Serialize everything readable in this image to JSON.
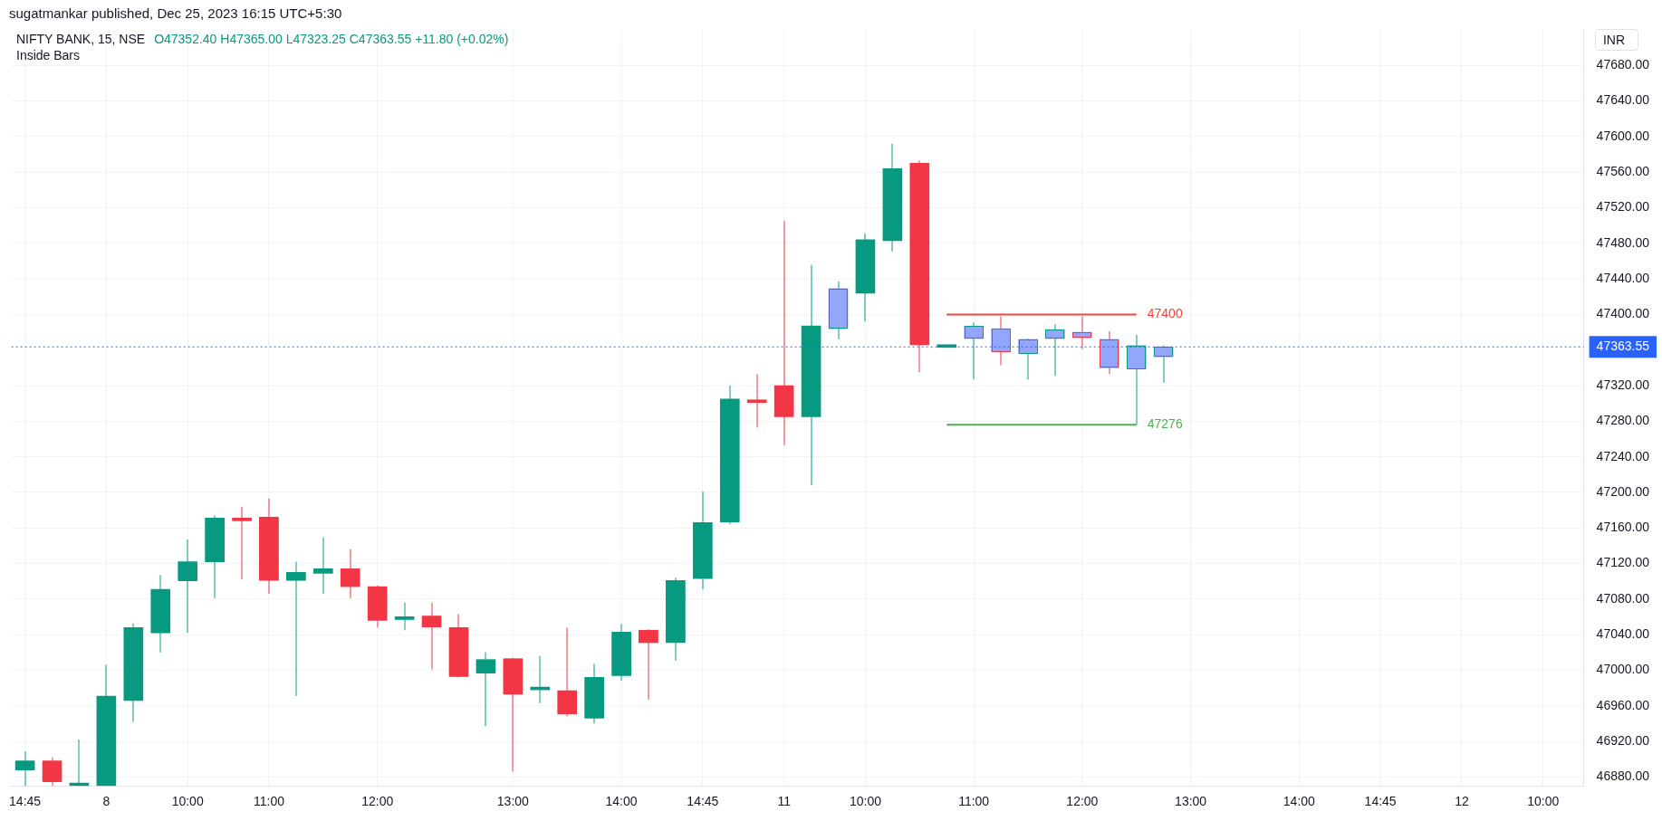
{
  "chart_data": {
    "type": "candlestick",
    "title": "NIFTY BANK, 15, NSE",
    "subtitle": "O47352.40 H47365.00 L47323.25 C47363.55 +11.80 (+0.02%)",
    "ylabel": "INR",
    "annotations": [
      "sugatmankar published, Dec 25, 2023 16:15 UTC+5:30",
      "Inside Bars"
    ],
    "categories": [
      "14:45",
      null,
      null,
      "8",
      null,
      null,
      "10:00",
      null,
      null,
      "11:00",
      null,
      null,
      null,
      "12:00",
      null,
      null,
      null,
      null,
      "13:00",
      null,
      null,
      null,
      "14:00",
      null,
      null,
      "14:45",
      null,
      null,
      "11",
      null,
      null,
      "10:00",
      null,
      null,
      null,
      "11:00",
      null,
      null,
      null,
      "12:00",
      null,
      null,
      null,
      "13:00",
      null,
      null,
      null,
      "14:00",
      null,
      null,
      "14:45",
      null,
      null,
      "12",
      null,
      null,
      "10:00",
      null
    ],
    "series": [
      {
        "type": "candlestick",
        "color": "#089981",
        "ohlc": [
          [
            46888,
            46909,
            46870,
            46898
          ],
          null,
          [
            46870,
            46922,
            46870,
            46872
          ],
          [
            46870,
            47006,
            46870,
            46971
          ],
          [
            46966,
            47053,
            46942,
            47048
          ],
          [
            47042,
            47107,
            47020,
            47091
          ],
          [
            47101,
            47147,
            47042,
            47122
          ],
          [
            47122,
            47174,
            47081,
            47171
          ],
          null,
          null,
          [
            47101,
            47122,
            46971,
            47110
          ],
          [
            47109,
            47149,
            47086,
            47114
          ],
          null,
          null,
          [
            47057,
            47076,
            47045,
            47058
          ],
          null,
          null,
          [
            46997,
            47020,
            46937,
            47012
          ],
          null,
          [
            46978,
            47016,
            46963,
            46979
          ],
          null,
          [
            46946,
            47007,
            46940,
            46992
          ],
          [
            46994,
            47052,
            46988,
            47043
          ],
          null,
          [
            47031,
            47104,
            47011,
            47101
          ],
          [
            47103,
            47201,
            47091,
            47166
          ],
          [
            47167,
            47320,
            47164,
            47305
          ],
          null,
          null,
          [
            47285,
            47456,
            47208,
            47387
          ],
          [
            47384,
            47437,
            47372,
            47429
          ],
          [
            47424,
            47491,
            47392,
            47484
          ],
          [
            47483,
            47592,
            47471,
            47564
          ],
          null,
          [
            47363,
            47366,
            47363,
            47366
          ],
          [
            47373,
            47391,
            47327,
            47387
          ],
          null,
          [
            47356,
            47373,
            47327,
            47372
          ],
          [
            47373,
            47389,
            47331,
            47383
          ],
          null,
          null,
          [
            47339,
            47377,
            47276,
            47365
          ],
          [
            47352.4,
            47365,
            47323.25,
            47363.55
          ],
          null,
          null,
          null,
          null,
          null,
          null,
          null,
          null,
          null,
          null,
          null,
          null,
          null,
          null,
          null
        ],
        "colors": [
          "#089981",
          "#089981",
          "#089981",
          "#089981",
          "#089981",
          "#089981",
          "#089981",
          "#089981",
          "#089981",
          "#089981",
          "#089981",
          "#089981",
          "#089981",
          "#089981",
          "#089981",
          "#089981",
          "#089981",
          "#089981",
          "#089981",
          "#089981",
          "#089981",
          "#089981",
          "#089981",
          "#089981",
          "#089981",
          "#089981",
          "#089981",
          "#089981",
          "#089981",
          "#089981",
          "#92a6fc",
          "#089981",
          "#089981",
          "#089981",
          "#089981",
          "#92a6fc",
          "#089981",
          "#92a6fc",
          "#92a6fc",
          "#089981",
          "#089981",
          "#92a6fc",
          "#92a6fc",
          "#089981",
          "#089981",
          "#089981",
          "#089981",
          "#089981",
          "#089981",
          "#089981",
          "#089981",
          "#089981",
          "#089981",
          "#089981",
          "#089981",
          "#089981",
          "#089981",
          "#089981"
        ]
      },
      {
        "type": "candlestick",
        "color": "#f23645",
        "ohlc": [
          null,
          [
            46898,
            46902,
            46870,
            46875
          ],
          null,
          null,
          null,
          null,
          null,
          null,
          [
            47171,
            47184,
            47102,
            47168
          ],
          [
            47172,
            47193,
            47086,
            47101
          ],
          null,
          null,
          [
            47114,
            47136,
            47081,
            47094
          ],
          [
            47094,
            47095,
            47048,
            47056
          ],
          null,
          [
            47061,
            47076,
            47001,
            47049
          ],
          [
            47048,
            47063,
            46992,
            46993
          ],
          null,
          [
            47013,
            47014,
            46886,
            46973
          ],
          null,
          [
            46977,
            47048,
            46948,
            46951
          ],
          null,
          null,
          [
            47045,
            47046,
            46967,
            47031
          ],
          null,
          null,
          null,
          [
            47302,
            47333,
            47273,
            47301
          ],
          [
            47320,
            47505,
            47253,
            47285
          ],
          null,
          null,
          null,
          null,
          [
            47570,
            47573,
            47335,
            47366
          ],
          null,
          null,
          [
            47384,
            47398,
            47343,
            47358
          ],
          null,
          null,
          [
            47380,
            47398,
            47361,
            47374
          ],
          [
            47372,
            47381,
            47333,
            47340
          ],
          null,
          null,
          null,
          null,
          null,
          null,
          null,
          null,
          null,
          null,
          null,
          null,
          null,
          null,
          null,
          null,
          null
        ],
        "colors": [
          "#f23645",
          "#f23645",
          "#f23645",
          "#f23645",
          "#f23645",
          "#f23645",
          "#f23645",
          "#f23645",
          "#f23645",
          "#f23645",
          "#f23645",
          "#f23645",
          "#f23645",
          "#f23645",
          "#f23645",
          "#f23645",
          "#f23645",
          "#f23645",
          "#f23645",
          "#f23645",
          "#f23645",
          "#f23645",
          "#f23645",
          "#f23645",
          "#f23645",
          "#f23645",
          "#f23645",
          "#f23645",
          "#f23645",
          "#f23645",
          "#f23645",
          "#f23645",
          "#f23645",
          "#f23645",
          "#f23645",
          "#f23645",
          "#92a6fc",
          "#f23645",
          "#f23645",
          "#92a6fc",
          "#92a6fc",
          "#f23645",
          "#f23645",
          "#f23645",
          "#f23645",
          "#f23645",
          "#f23645",
          "#f23645",
          "#f23645",
          "#f23645",
          "#f23645",
          "#f23645",
          "#f23645",
          "#f23645",
          "#f23645",
          "#f23645",
          "#f23645",
          "#f23645"
        ]
      },
      {
        "type": "line",
        "color": "#f44336",
        "values": [
          null,
          null,
          null,
          null,
          null,
          null,
          null,
          null,
          null,
          null,
          null,
          null,
          null,
          null,
          null,
          null,
          null,
          null,
          null,
          null,
          null,
          null,
          null,
          null,
          null,
          null,
          null,
          null,
          null,
          null,
          null,
          null,
          null,
          null,
          47400,
          47400,
          47400,
          47400,
          47400,
          47400,
          47400,
          47400,
          null,
          null,
          null,
          null,
          null,
          null,
          null,
          null,
          null,
          null,
          null,
          null,
          null,
          null,
          null,
          null
        ],
        "value_labels": [
          null,
          null,
          null,
          null,
          null,
          null,
          null,
          null,
          null,
          null,
          null,
          null,
          null,
          null,
          null,
          null,
          null,
          null,
          null,
          null,
          null,
          null,
          null,
          null,
          null,
          null,
          null,
          null,
          null,
          null,
          null,
          null,
          null,
          null,
          null,
          null,
          null,
          null,
          null,
          null,
          null,
          "47400",
          null,
          null,
          null,
          null,
          null,
          null,
          null,
          null,
          null,
          null,
          null,
          null,
          null,
          null,
          null,
          null
        ]
      },
      {
        "type": "line",
        "color": "#4caf50",
        "values": [
          null,
          null,
          null,
          null,
          null,
          null,
          null,
          null,
          null,
          null,
          null,
          null,
          null,
          null,
          null,
          null,
          null,
          null,
          null,
          null,
          null,
          null,
          null,
          null,
          null,
          null,
          null,
          null,
          null,
          null,
          null,
          null,
          null,
          null,
          47276,
          47276,
          47276,
          47276,
          47276,
          47276,
          47276,
          47276,
          null,
          null,
          null,
          null,
          null,
          null,
          null,
          null,
          null,
          null,
          null,
          null,
          null,
          null,
          null,
          null
        ],
        "value_labels": [
          null,
          null,
          null,
          null,
          null,
          null,
          null,
          null,
          null,
          null,
          null,
          null,
          null,
          null,
          null,
          null,
          null,
          null,
          null,
          null,
          null,
          null,
          null,
          null,
          null,
          null,
          null,
          null,
          null,
          null,
          null,
          null,
          null,
          null,
          null,
          null,
          null,
          null,
          null,
          null,
          null,
          "47276",
          null,
          null,
          null,
          null,
          null,
          null,
          null,
          null,
          null,
          null,
          null,
          null,
          null,
          null,
          null,
          null
        ]
      }
    ],
    "ylim": [
      46870,
      47720
    ],
    "yticks": [
      {
        "value": 46880,
        "label": "46880.00"
      },
      {
        "value": 46920,
        "label": "46920.00"
      },
      {
        "value": 46960,
        "label": "46960.00"
      },
      {
        "value": 47000,
        "label": "47000.00"
      },
      {
        "value": 47040,
        "label": "47040.00"
      },
      {
        "value": 47080,
        "label": "47080.00"
      },
      {
        "value": 47120,
        "label": "47120.00"
      },
      {
        "value": 47160,
        "label": "47160.00"
      },
      {
        "value": 47200,
        "label": "47200.00"
      },
      {
        "value": 47240,
        "label": "47240.00"
      },
      {
        "value": 47280,
        "label": "47280.00"
      },
      {
        "value": 47320,
        "label": "47320.00"
      },
      {
        "value": 47400,
        "label": "47400.00"
      },
      {
        "value": 47440,
        "label": "47440.00"
      },
      {
        "value": 47480,
        "label": "47480.00"
      },
      {
        "value": 47520,
        "label": "47520.00"
      },
      {
        "value": 47560,
        "label": "47560.00"
      },
      {
        "value": 47600,
        "label": "47600.00"
      },
      {
        "value": 47640,
        "label": "47640.00"
      },
      {
        "value": 47680,
        "label": "47680.00"
      }
    ],
    "ref_lines": [
      {
        "axis": "y",
        "value": 47363.55,
        "label": "47363.55",
        "color": "#2962ff",
        "line_style": "dotted"
      }
    ],
    "grid": true,
    "marker": "none"
  }
}
